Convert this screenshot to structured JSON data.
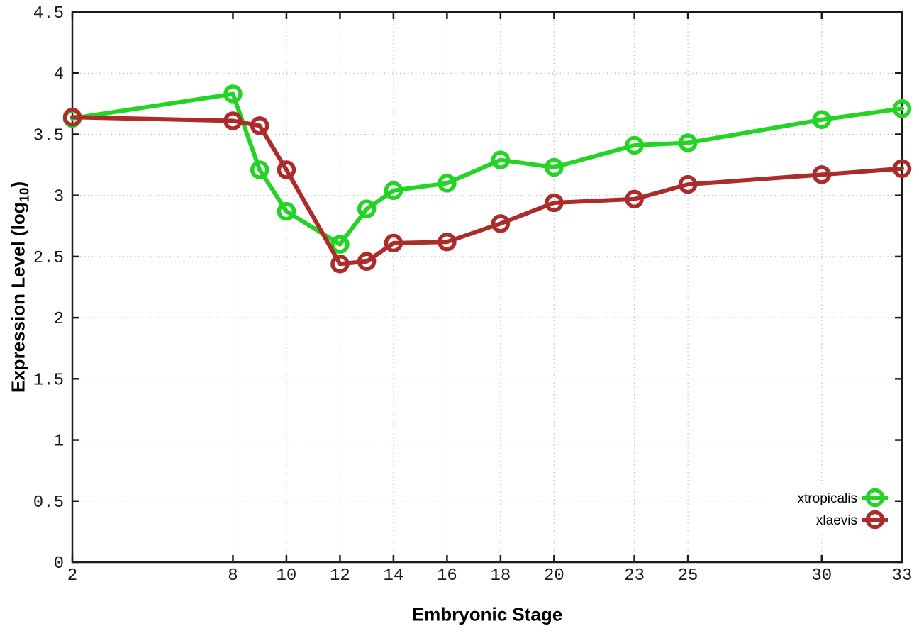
{
  "chart_data": {
    "type": "line",
    "title": "",
    "xlabel": "Embryonic Stage",
    "ylabel": "Expression Level (log10)",
    "ylabel_parts": {
      "pre": "Expression Level (log",
      "sub": "10",
      "post": ")"
    },
    "xlim": [
      2,
      33
    ],
    "ylim": [
      0,
      4.5
    ],
    "grid": true,
    "grid_style": "dotted",
    "legend_position": "inside-bottom-right",
    "border_color": "#1c1c1c",
    "grid_color": "#bfbfbf",
    "x_ticks": [
      2,
      8,
      10,
      12,
      14,
      16,
      18,
      20,
      23,
      25,
      30,
      33
    ],
    "x_tick_labels": [
      "2",
      "8",
      "10",
      "12",
      "14",
      "16",
      "18",
      "20",
      "23",
      "25",
      "30",
      "33"
    ],
    "y_ticks": [
      0,
      0.5,
      1,
      1.5,
      2,
      2.5,
      3,
      3.5,
      4,
      4.5
    ],
    "y_tick_labels": [
      "0",
      "0.5",
      "1",
      "1.5",
      "2",
      "2.5",
      "3",
      "3.5",
      "4",
      "4.5"
    ],
    "x": [
      2,
      8,
      9,
      10,
      12,
      13,
      14,
      16,
      18,
      20,
      23,
      25,
      30,
      33
    ],
    "series": [
      {
        "name": "xtropicalis",
        "color": "#24d424",
        "marker": "open-circle",
        "values": [
          3.63,
          3.83,
          3.21,
          2.87,
          2.6,
          2.89,
          3.04,
          3.1,
          3.29,
          3.23,
          3.41,
          3.43,
          3.62,
          3.71
        ]
      },
      {
        "name": "xlaevis",
        "color": "#ac2c2c",
        "marker": "open-circle",
        "values": [
          3.64,
          3.61,
          3.57,
          3.21,
          2.44,
          2.46,
          2.61,
          2.62,
          2.77,
          2.94,
          2.97,
          3.09,
          3.17,
          3.22
        ]
      }
    ]
  }
}
